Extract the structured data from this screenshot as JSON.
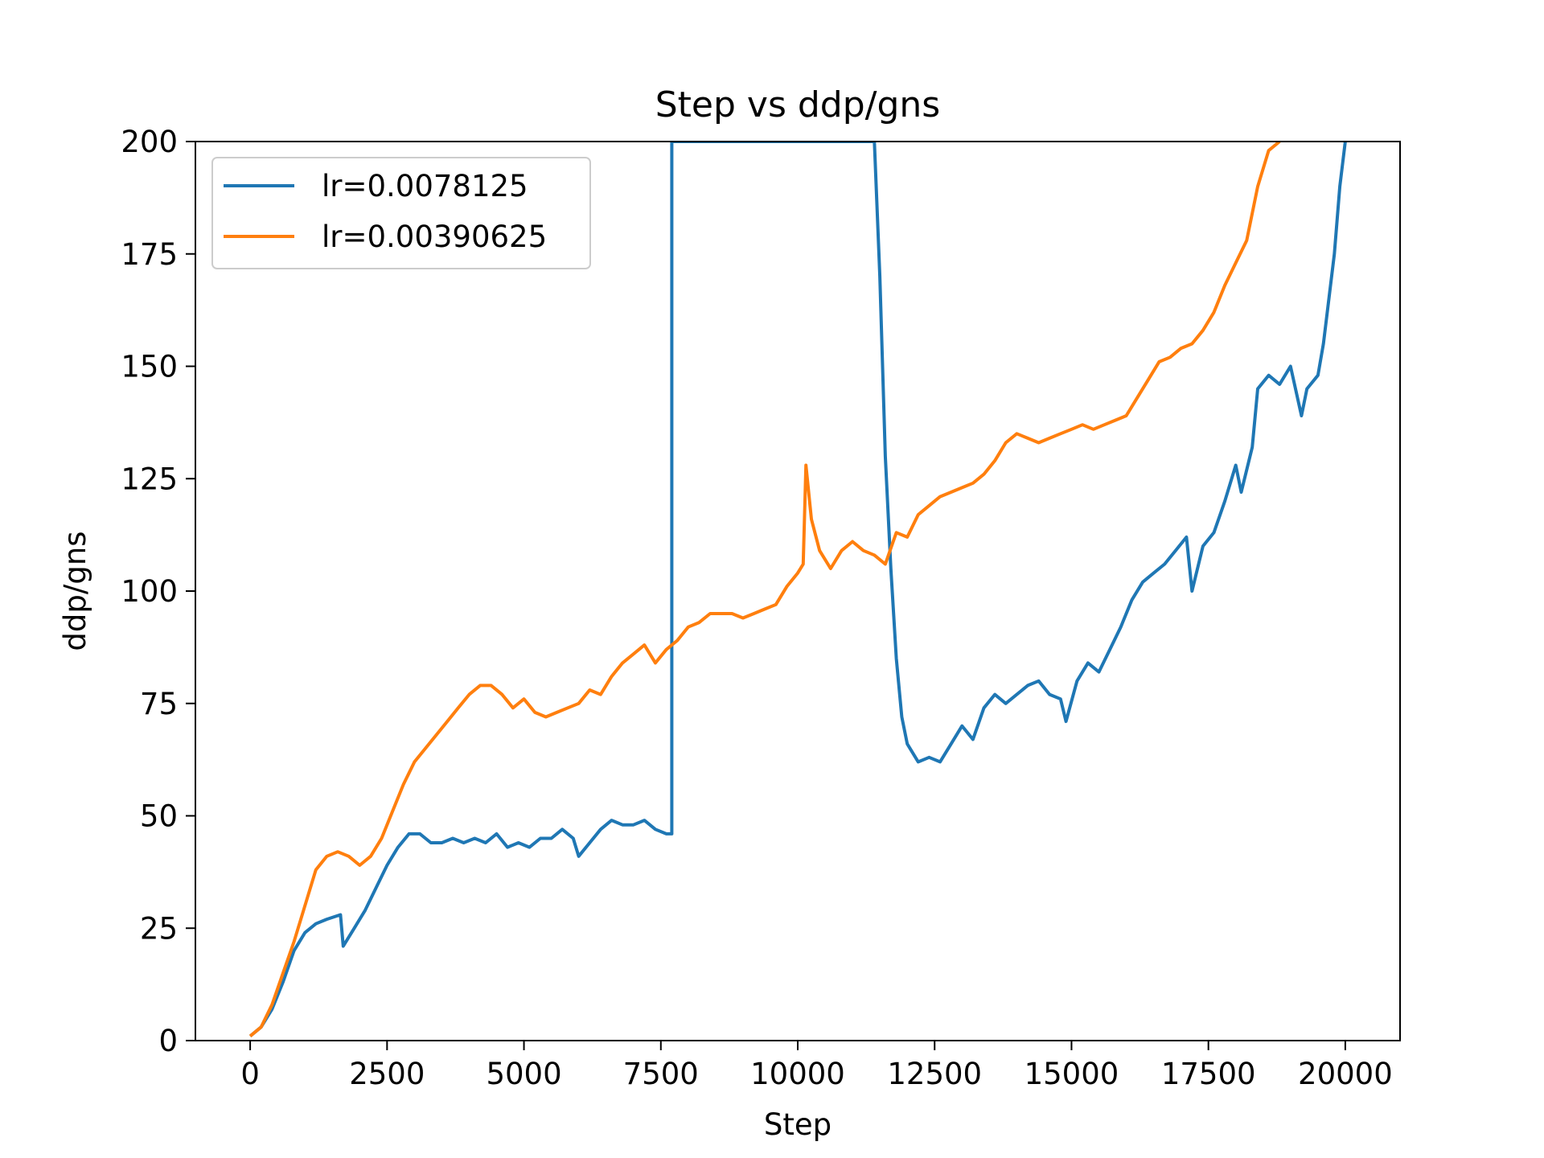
{
  "chart_data": {
    "type": "line",
    "title": "Step vs ddp/gns",
    "xlabel": "Step",
    "ylabel": "ddp/gns",
    "xlim": [
      -1000,
      21000
    ],
    "ylim": [
      0,
      200
    ],
    "xticks": [
      0,
      2500,
      5000,
      7500,
      10000,
      12500,
      15000,
      17500,
      20000
    ],
    "yticks": [
      0,
      25,
      50,
      75,
      100,
      125,
      150,
      175,
      200
    ],
    "grid": false,
    "legend": "top-left",
    "series": [
      {
        "name": "lr=0.0078125",
        "color": "#1f77b4",
        "points": [
          [
            0,
            1
          ],
          [
            200,
            3
          ],
          [
            400,
            7
          ],
          [
            600,
            13
          ],
          [
            800,
            20
          ],
          [
            1000,
            24
          ],
          [
            1200,
            26
          ],
          [
            1400,
            27
          ],
          [
            1650,
            28
          ],
          [
            1700,
            21
          ],
          [
            1900,
            25
          ],
          [
            2100,
            29
          ],
          [
            2300,
            34
          ],
          [
            2500,
            39
          ],
          [
            2700,
            43
          ],
          [
            2900,
            46
          ],
          [
            3100,
            46
          ],
          [
            3300,
            44
          ],
          [
            3500,
            44
          ],
          [
            3700,
            45
          ],
          [
            3900,
            44
          ],
          [
            4100,
            45
          ],
          [
            4300,
            44
          ],
          [
            4500,
            46
          ],
          [
            4700,
            43
          ],
          [
            4900,
            44
          ],
          [
            5100,
            43
          ],
          [
            5300,
            45
          ],
          [
            5500,
            45
          ],
          [
            5700,
            47
          ],
          [
            5900,
            45
          ],
          [
            6000,
            41
          ],
          [
            6200,
            44
          ],
          [
            6400,
            47
          ],
          [
            6600,
            49
          ],
          [
            6800,
            48
          ],
          [
            7000,
            48
          ],
          [
            7200,
            49
          ],
          [
            7400,
            47
          ],
          [
            7600,
            46
          ],
          [
            7700,
            46
          ],
          [
            7700,
            200
          ],
          [
            11400,
            200
          ],
          [
            11500,
            170
          ],
          [
            11600,
            130
          ],
          [
            11700,
            105
          ],
          [
            11800,
            85
          ],
          [
            11900,
            72
          ],
          [
            12000,
            66
          ],
          [
            12200,
            62
          ],
          [
            12400,
            63
          ],
          [
            12600,
            62
          ],
          [
            12800,
            66
          ],
          [
            13000,
            70
          ],
          [
            13200,
            67
          ],
          [
            13400,
            74
          ],
          [
            13600,
            77
          ],
          [
            13800,
            75
          ],
          [
            14000,
            77
          ],
          [
            14200,
            79
          ],
          [
            14400,
            80
          ],
          [
            14600,
            77
          ],
          [
            14800,
            76
          ],
          [
            14900,
            71
          ],
          [
            15100,
            80
          ],
          [
            15300,
            84
          ],
          [
            15500,
            82
          ],
          [
            15700,
            87
          ],
          [
            15900,
            92
          ],
          [
            16100,
            98
          ],
          [
            16300,
            102
          ],
          [
            16500,
            104
          ],
          [
            16700,
            106
          ],
          [
            16900,
            109
          ],
          [
            17100,
            112
          ],
          [
            17200,
            100
          ],
          [
            17400,
            110
          ],
          [
            17600,
            113
          ],
          [
            17800,
            120
          ],
          [
            18000,
            128
          ],
          [
            18100,
            122
          ],
          [
            18300,
            132
          ],
          [
            18400,
            145
          ],
          [
            18600,
            148
          ],
          [
            18800,
            146
          ],
          [
            19000,
            150
          ],
          [
            19200,
            139
          ],
          [
            19300,
            145
          ],
          [
            19500,
            148
          ],
          [
            19600,
            155
          ],
          [
            19800,
            175
          ],
          [
            19900,
            190
          ],
          [
            20000,
            200
          ]
        ]
      },
      {
        "name": "lr=0.00390625",
        "color": "#ff7f0e",
        "points": [
          [
            0,
            1
          ],
          [
            200,
            3
          ],
          [
            400,
            8
          ],
          [
            600,
            15
          ],
          [
            800,
            22
          ],
          [
            1000,
            30
          ],
          [
            1200,
            38
          ],
          [
            1400,
            41
          ],
          [
            1600,
            42
          ],
          [
            1800,
            41
          ],
          [
            2000,
            39
          ],
          [
            2200,
            41
          ],
          [
            2400,
            45
          ],
          [
            2600,
            51
          ],
          [
            2800,
            57
          ],
          [
            3000,
            62
          ],
          [
            3200,
            65
          ],
          [
            3400,
            68
          ],
          [
            3600,
            71
          ],
          [
            3800,
            74
          ],
          [
            4000,
            77
          ],
          [
            4200,
            79
          ],
          [
            4400,
            79
          ],
          [
            4600,
            77
          ],
          [
            4800,
            74
          ],
          [
            5000,
            76
          ],
          [
            5200,
            73
          ],
          [
            5400,
            72
          ],
          [
            5600,
            73
          ],
          [
            5800,
            74
          ],
          [
            6000,
            75
          ],
          [
            6200,
            78
          ],
          [
            6400,
            77
          ],
          [
            6600,
            81
          ],
          [
            6800,
            84
          ],
          [
            7000,
            86
          ],
          [
            7200,
            88
          ],
          [
            7400,
            84
          ],
          [
            7600,
            87
          ],
          [
            7800,
            89
          ],
          [
            8000,
            92
          ],
          [
            8200,
            93
          ],
          [
            8400,
            95
          ],
          [
            8600,
            95
          ],
          [
            8800,
            95
          ],
          [
            9000,
            94
          ],
          [
            9200,
            95
          ],
          [
            9400,
            96
          ],
          [
            9600,
            97
          ],
          [
            9800,
            101
          ],
          [
            10000,
            104
          ],
          [
            10100,
            106
          ],
          [
            10150,
            128
          ],
          [
            10250,
            116
          ],
          [
            10400,
            109
          ],
          [
            10600,
            105
          ],
          [
            10800,
            109
          ],
          [
            11000,
            111
          ],
          [
            11200,
            109
          ],
          [
            11400,
            108
          ],
          [
            11600,
            106
          ],
          [
            11800,
            113
          ],
          [
            12000,
            112
          ],
          [
            12200,
            117
          ],
          [
            12400,
            119
          ],
          [
            12600,
            121
          ],
          [
            12800,
            122
          ],
          [
            13000,
            123
          ],
          [
            13200,
            124
          ],
          [
            13400,
            126
          ],
          [
            13600,
            129
          ],
          [
            13800,
            133
          ],
          [
            14000,
            135
          ],
          [
            14200,
            134
          ],
          [
            14400,
            133
          ],
          [
            14600,
            134
          ],
          [
            14800,
            135
          ],
          [
            15000,
            136
          ],
          [
            15200,
            137
          ],
          [
            15400,
            136
          ],
          [
            15600,
            137
          ],
          [
            15800,
            138
          ],
          [
            16000,
            139
          ],
          [
            16200,
            143
          ],
          [
            16400,
            147
          ],
          [
            16600,
            151
          ],
          [
            16800,
            152
          ],
          [
            17000,
            154
          ],
          [
            17200,
            155
          ],
          [
            17400,
            158
          ],
          [
            17600,
            162
          ],
          [
            17800,
            168
          ],
          [
            18000,
            173
          ],
          [
            18200,
            178
          ],
          [
            18400,
            190
          ],
          [
            18600,
            198
          ],
          [
            18800,
            200
          ]
        ]
      }
    ]
  }
}
